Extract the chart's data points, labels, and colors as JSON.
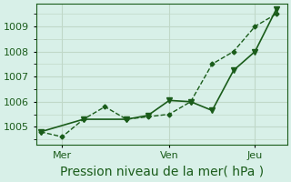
{
  "title": "",
  "xlabel": "Pression niveau de la mer( hPa )",
  "bg_color": "#d8f0e8",
  "grid_color": "#c0d8c8",
  "line_color": "#1a5c1a",
  "line1_x": [
    0,
    1,
    2,
    3,
    4,
    5,
    6,
    7,
    8,
    9,
    10,
    11
  ],
  "line1_y": [
    1004.8,
    1004.6,
    1005.3,
    1005.8,
    1005.3,
    1005.4,
    1005.5,
    1006.0,
    1007.5,
    1008.0,
    1009.0,
    1009.5
  ],
  "line2_x": [
    0,
    2,
    4,
    5,
    6,
    7,
    8,
    9,
    10,
    11
  ],
  "line2_y": [
    1004.8,
    1005.3,
    1005.3,
    1005.45,
    1006.05,
    1006.0,
    1005.65,
    1007.25,
    1008.0,
    1009.7
  ],
  "xtick_positions": [
    1,
    6,
    10
  ],
  "xtick_labels": [
    "Mer",
    "Ven",
    "Jeu"
  ],
  "vline_positions": [
    1,
    6,
    10
  ],
  "ylim": [
    1004.3,
    1009.9
  ],
  "ytick_values": [
    1005,
    1006,
    1007,
    1008,
    1009
  ],
  "xlim": [
    -0.2,
    11.5
  ],
  "xlabel_fontsize": 10,
  "tick_fontsize": 8
}
